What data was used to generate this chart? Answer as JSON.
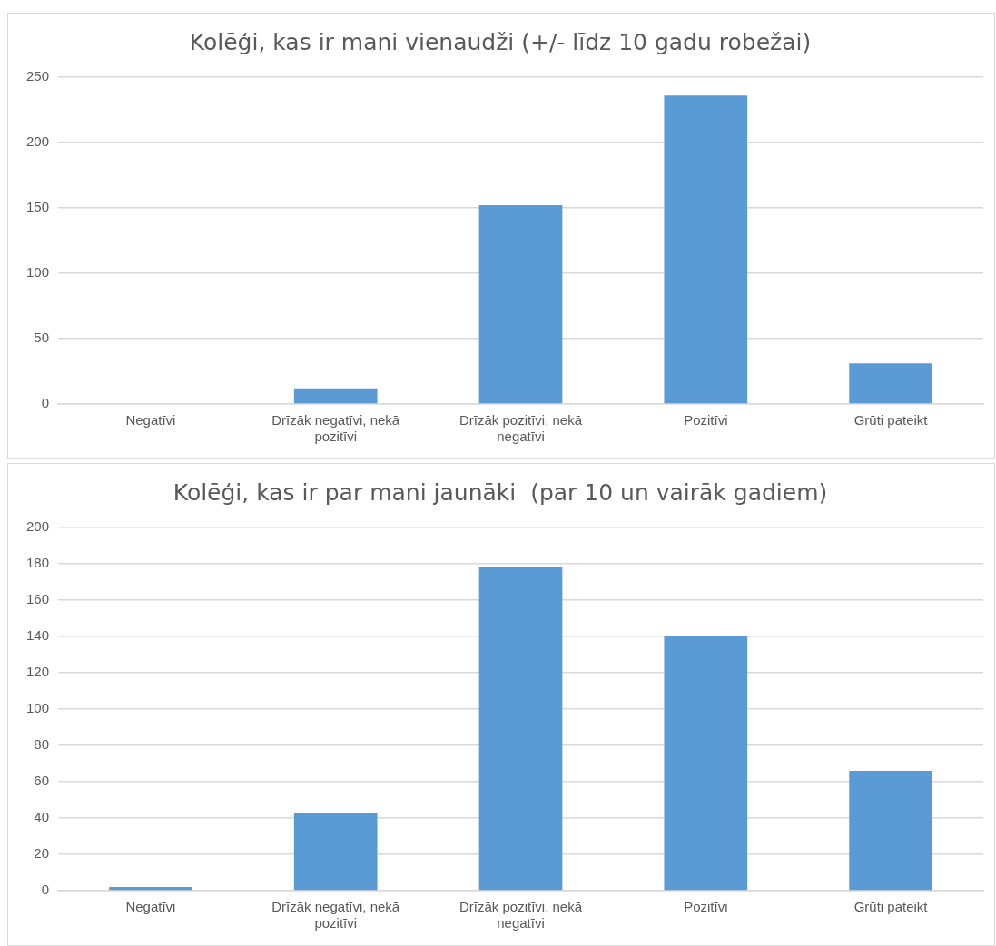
{
  "chart_data": [
    {
      "type": "bar",
      "title": "Kolēģi, kas ir mani vienaudži (+/- līdz 10 gadu robežai)",
      "categories": [
        "Negatīvi",
        "Drīzāk negatīvi, nekā pozitīvi",
        "Drīzāk pozitīvi, nekā negatīvi",
        "Pozitīvi",
        "Grūti pateikt"
      ],
      "values": [
        0,
        12,
        152,
        236,
        31
      ],
      "color": "#5b9bd5",
      "ylim": [
        0,
        250
      ],
      "yticks": [
        0,
        50,
        100,
        150,
        200,
        250
      ],
      "grid": "y"
    },
    {
      "type": "bar",
      "title": "Kolēģi, kas ir par mani jaunāki  (par 10 un vairāk gadiem)",
      "categories": [
        "Negatīvi",
        "Drīzāk negatīvi, nekā pozitīvi",
        "Drīzāk pozitīvi, nekā negatīvi",
        "Pozitīvi",
        "Grūti pateikt"
      ],
      "values": [
        2,
        43,
        178,
        140,
        66
      ],
      "color": "#5b9bd5",
      "ylim": [
        0,
        200
      ],
      "yticks": [
        0,
        20,
        40,
        60,
        80,
        100,
        120,
        140,
        160,
        180,
        200
      ],
      "grid": "y"
    }
  ]
}
